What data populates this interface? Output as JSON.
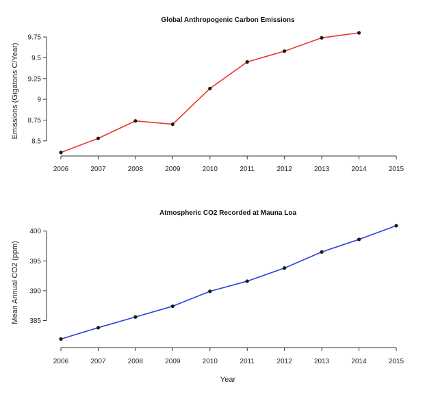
{
  "chart_data": [
    {
      "type": "line",
      "title": "Global Anthropogenic Carbon Emissions",
      "xlabel": "",
      "ylabel": "Emissions (Gigatons C/Year)",
      "x": [
        2006,
        2007,
        2008,
        2009,
        2010,
        2011,
        2012,
        2013,
        2014
      ],
      "x_ticks": [
        2006,
        2007,
        2008,
        2009,
        2010,
        2011,
        2012,
        2013,
        2014,
        2015
      ],
      "y_ticks": [
        8.5,
        8.75,
        9,
        9.25,
        9.5,
        9.75
      ],
      "y_tick_labels": [
        "8.5",
        "8.75",
        "9",
        "9.25",
        "9.5",
        "9.75"
      ],
      "xlim": [
        2006,
        2015
      ],
      "ylim": [
        8.4,
        9.8
      ],
      "series": [
        {
          "values": [
            8.36,
            8.53,
            8.74,
            8.7,
            9.13,
            9.45,
            9.58,
            9.74,
            9.8
          ],
          "color": "#e8342a"
        }
      ],
      "grid": false
    },
    {
      "type": "line",
      "title": "Atmospheric CO2 Recorded at Mauna Loa",
      "xlabel": "Year",
      "ylabel": "Mean Annual CO2 (ppm)",
      "x": [
        2006,
        2007,
        2008,
        2009,
        2010,
        2011,
        2012,
        2013,
        2014,
        2015
      ],
      "x_ticks": [
        2006,
        2007,
        2008,
        2009,
        2010,
        2011,
        2012,
        2013,
        2014,
        2015
      ],
      "y_ticks": [
        385,
        390,
        395,
        400
      ],
      "y_tick_labels": [
        "385",
        "390",
        "395",
        "400"
      ],
      "xlim": [
        2006,
        2015
      ],
      "ylim": [
        381.5,
        401
      ],
      "series": [
        {
          "values": [
            381.9,
            383.8,
            385.6,
            387.4,
            389.9,
            391.6,
            393.8,
            396.5,
            398.6,
            400.9
          ],
          "color": "#2b3ee0"
        }
      ],
      "grid": false
    }
  ]
}
